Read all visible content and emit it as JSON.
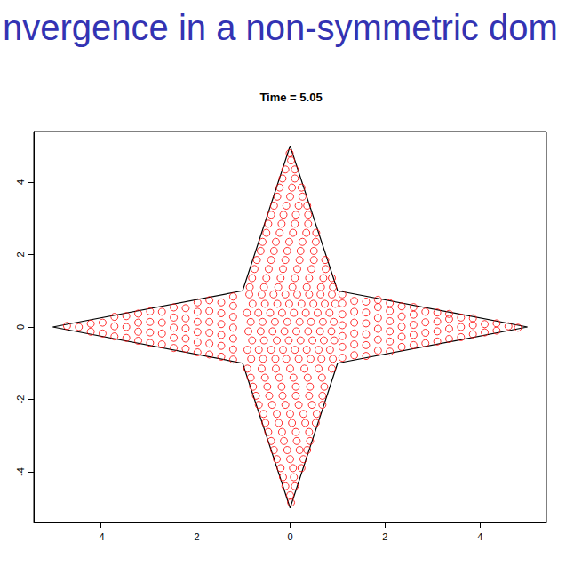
{
  "chart_data": {
    "type": "scatter",
    "title": "nvergence in a non-symmetric dom",
    "subtitle": "Time = 5.05",
    "xlim": [
      -5.4,
      5.4
    ],
    "ylim": [
      -5.4,
      5.4
    ],
    "xticks": [
      -4,
      -2,
      0,
      2,
      4
    ],
    "yticks": [
      -4,
      -2,
      0,
      2,
      4
    ],
    "grid": false,
    "series": [
      {
        "type": "line",
        "color": "#000000",
        "line_style": "solid",
        "x": [
          0,
          1,
          5,
          1,
          0,
          -1,
          -5,
          -1,
          0
        ],
        "values": [
          5,
          1,
          0,
          -1,
          -5,
          -1,
          0,
          1,
          5
        ]
      },
      {
        "type": "scatter",
        "color": "#ff0000",
        "marker": "open_circle",
        "x": [
          -0.82,
          -0.57,
          -0.31,
          -0.08,
          0.18,
          0.43,
          0.66,
          0.9,
          -0.9,
          -0.66,
          -0.4,
          -0.15,
          0.1,
          0.35,
          0.6,
          0.84,
          -0.8,
          -0.55,
          -0.28,
          -0.03,
          0.22,
          0.47,
          0.71,
          0.93,
          -0.88,
          -0.62,
          -0.37,
          -0.12,
          0.13,
          0.38,
          0.63,
          0.87,
          -0.83,
          -0.58,
          -0.32,
          -0.06,
          0.2,
          0.44,
          0.69,
          0.92,
          -0.91,
          -0.67,
          -0.42,
          -0.17,
          0.08,
          0.33,
          0.58,
          0.83,
          -0.79,
          -0.53,
          -0.27,
          -0.02,
          0.24,
          0.49,
          0.73,
          0.95,
          -0.86,
          -0.6,
          -0.35,
          -0.1,
          0.15,
          0.4,
          0.64,
          0.88,
          1.1,
          1.1,
          1.1,
          1.1,
          1.1,
          1.1,
          1.1,
          1.35,
          1.35,
          1.35,
          1.35,
          1.35,
          1.35,
          1.6,
          1.6,
          1.6,
          1.6,
          1.6,
          1.6,
          1.85,
          1.85,
          1.85,
          1.85,
          1.85,
          1.85,
          2.1,
          2.1,
          2.1,
          2.1,
          2.1,
          2.1,
          2.35,
          2.35,
          2.35,
          2.35,
          2.35,
          2.6,
          2.6,
          2.6,
          2.6,
          2.6,
          2.85,
          2.85,
          2.85,
          2.85,
          3.1,
          3.1,
          3.1,
          3.1,
          3.35,
          3.35,
          3.35,
          3.35,
          3.6,
          3.6,
          3.6,
          3.85,
          3.85,
          3.85,
          4.1,
          4.1,
          4.35,
          4.35,
          4.6,
          4.8,
          -1.2,
          -1.2,
          -1.2,
          -1.2,
          -1.2,
          -1.2,
          -1.2,
          -1.45,
          -1.45,
          -1.45,
          -1.45,
          -1.45,
          -1.45,
          -1.7,
          -1.7,
          -1.7,
          -1.7,
          -1.7,
          -1.7,
          -1.95,
          -1.95,
          -1.95,
          -1.95,
          -1.95,
          -1.95,
          -2.2,
          -2.2,
          -2.2,
          -2.2,
          -2.2,
          -2.45,
          -2.45,
          -2.45,
          -2.45,
          -2.45,
          -2.7,
          -2.7,
          -2.7,
          -2.7,
          -2.95,
          -2.95,
          -2.95,
          -2.95,
          -3.2,
          -3.2,
          -3.2,
          -3.2,
          -3.45,
          -3.45,
          -3.45,
          -3.7,
          -3.7,
          -3.7,
          -3.95,
          -3.95,
          -4.2,
          -4.2,
          -4.45,
          -4.7,
          -0.85,
          -0.55,
          -0.25,
          0.05,
          0.35,
          0.65,
          0.9,
          -0.8,
          -0.5,
          -0.2,
          0.1,
          0.4,
          0.7,
          0.88,
          -0.75,
          -0.45,
          -0.15,
          0.15,
          0.45,
          0.75,
          -0.7,
          -0.4,
          -0.1,
          0.2,
          0.5,
          0.74,
          -0.62,
          -0.34,
          -0.06,
          0.22,
          0.5,
          -0.58,
          -0.3,
          -0.02,
          0.26,
          0.54,
          -0.5,
          -0.22,
          0.06,
          0.34,
          0.55,
          -0.46,
          -0.18,
          0.1,
          0.38,
          -0.4,
          -0.14,
          0.12,
          0.38,
          -0.34,
          -0.08,
          0.18,
          0.36,
          -0.27,
          0.0,
          0.26,
          -0.22,
          0.04,
          0.24,
          -0.16,
          0.1,
          -0.1,
          0.1,
          0.02,
          -0.01,
          -0.9,
          -0.6,
          -0.3,
          0,
          0.3,
          0.6,
          0.88,
          -0.83,
          -0.53,
          -0.23,
          0.07,
          0.37,
          0.67,
          -0.78,
          -0.48,
          -0.18,
          0.12,
          0.42,
          0.72,
          -0.72,
          -0.44,
          -0.16,
          0.12,
          0.4,
          0.68,
          -0.66,
          -0.38,
          -0.1,
          0.18,
          0.46,
          0.68,
          -0.56,
          -0.28,
          0,
          0.28,
          0.56,
          -0.52,
          -0.24,
          0.04,
          0.32,
          0.54,
          -0.46,
          -0.17,
          0.12,
          0.4,
          -0.4,
          -0.13,
          0.14,
          0.42,
          -0.34,
          -0.06,
          0.2,
          0.36,
          -0.28,
          0,
          0.28,
          -0.2,
          0.06,
          0.24,
          -0.15,
          0.08,
          -0.1,
          0.1,
          0.0,
          0.02
        ],
        "values": [
          -0.88,
          -0.88,
          -0.88,
          -0.88,
          -0.88,
          -0.88,
          -0.88,
          -0.88,
          -0.63,
          -0.63,
          -0.63,
          -0.63,
          -0.63,
          -0.63,
          -0.63,
          -0.63,
          -0.37,
          -0.37,
          -0.37,
          -0.37,
          -0.37,
          -0.37,
          -0.37,
          -0.37,
          -0.12,
          -0.12,
          -0.12,
          -0.12,
          -0.12,
          -0.12,
          -0.12,
          -0.12,
          0.14,
          0.14,
          0.14,
          0.14,
          0.14,
          0.14,
          0.14,
          0.14,
          0.39,
          0.39,
          0.39,
          0.39,
          0.39,
          0.39,
          0.39,
          0.39,
          0.64,
          0.64,
          0.64,
          0.64,
          0.64,
          0.64,
          0.64,
          0.64,
          0.9,
          0.9,
          0.9,
          0.9,
          0.9,
          0.9,
          0.9,
          0.9,
          -0.85,
          -0.55,
          -0.25,
          0.05,
          0.35,
          0.65,
          0.9,
          -0.78,
          -0.48,
          -0.18,
          0.12,
          0.42,
          0.72,
          -0.8,
          -0.5,
          -0.2,
          0.1,
          0.4,
          0.7,
          -0.65,
          -0.35,
          -0.05,
          0.25,
          0.55,
          0.75,
          -0.68,
          -0.4,
          -0.12,
          0.16,
          0.44,
          0.66,
          -0.55,
          -0.27,
          0.01,
          0.29,
          0.57,
          -0.5,
          -0.22,
          0.06,
          0.34,
          0.55,
          -0.45,
          -0.16,
          0.13,
          0.42,
          -0.4,
          -0.12,
          0.15,
          0.4,
          -0.33,
          -0.05,
          0.22,
          0.36,
          -0.28,
          0.0,
          0.26,
          -0.2,
          0.05,
          0.24,
          -0.15,
          0.08,
          -0.1,
          0.1,
          0.02,
          -0.02,
          -0.9,
          -0.62,
          -0.32,
          -0.02,
          0.28,
          0.58,
          0.84,
          -0.82,
          -0.52,
          -0.22,
          0.08,
          0.38,
          0.68,
          -0.76,
          -0.46,
          -0.16,
          0.14,
          0.44,
          0.74,
          -0.7,
          -0.42,
          -0.14,
          0.14,
          0.42,
          0.68,
          -0.6,
          -0.32,
          -0.04,
          0.24,
          0.52,
          -0.58,
          -0.3,
          -0.02,
          0.26,
          0.54,
          -0.48,
          -0.18,
          0.12,
          0.42,
          -0.44,
          -0.15,
          0.14,
          0.43,
          -0.38,
          -0.13,
          0.12,
          0.37,
          -0.3,
          0,
          0.3,
          -0.26,
          0.02,
          0.28,
          -0.18,
          0.12,
          -0.13,
          0.09,
          0.0,
          0.03,
          1.1,
          1.1,
          1.1,
          1.1,
          1.1,
          1.1,
          1.1,
          1.35,
          1.35,
          1.35,
          1.35,
          1.35,
          1.35,
          1.35,
          1.6,
          1.6,
          1.6,
          1.6,
          1.6,
          1.6,
          1.85,
          1.85,
          1.85,
          1.85,
          1.85,
          1.85,
          2.1,
          2.1,
          2.1,
          2.1,
          2.1,
          2.35,
          2.35,
          2.35,
          2.35,
          2.35,
          2.6,
          2.6,
          2.6,
          2.6,
          2.6,
          2.85,
          2.85,
          2.85,
          2.85,
          3.1,
          3.1,
          3.1,
          3.1,
          3.35,
          3.35,
          3.35,
          3.35,
          3.6,
          3.6,
          3.6,
          3.85,
          3.85,
          3.85,
          4.1,
          4.1,
          4.35,
          4.35,
          4.6,
          4.8,
          -1.15,
          -1.15,
          -1.15,
          -1.15,
          -1.15,
          -1.15,
          -1.15,
          -1.4,
          -1.4,
          -1.4,
          -1.4,
          -1.4,
          -1.4,
          -1.65,
          -1.65,
          -1.65,
          -1.65,
          -1.65,
          -1.65,
          -1.9,
          -1.9,
          -1.9,
          -1.9,
          -1.9,
          -1.9,
          -2.15,
          -2.15,
          -2.15,
          -2.15,
          -2.15,
          -2.15,
          -2.4,
          -2.4,
          -2.4,
          -2.4,
          -2.4,
          -2.65,
          -2.65,
          -2.65,
          -2.65,
          -2.65,
          -2.9,
          -2.9,
          -2.9,
          -2.9,
          -3.15,
          -3.15,
          -3.15,
          -3.15,
          -3.4,
          -3.4,
          -3.4,
          -3.4,
          -3.65,
          -3.65,
          -3.65,
          -3.9,
          -3.9,
          -3.9,
          -4.15,
          -4.15,
          -4.4,
          -4.4,
          -4.65,
          -4.85
        ]
      }
    ]
  }
}
